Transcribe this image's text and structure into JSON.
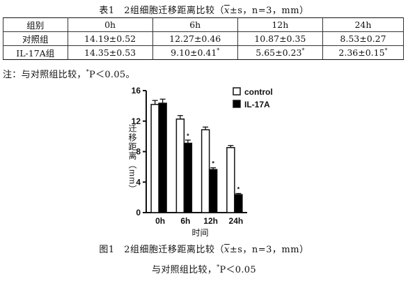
{
  "table": {
    "caption_prefix": "表1　2组细胞迁移距离比较（",
    "caption_xbar": "x",
    "caption_suffix": "±s，n=3，mm）",
    "headers": [
      "组别",
      "0h",
      "6h",
      "12h",
      "24h"
    ],
    "rows": [
      {
        "group": "对照组",
        "cells": [
          {
            "value": "14.19±0.52",
            "mark": ""
          },
          {
            "value": "12.27±0.46",
            "mark": ""
          },
          {
            "value": "10.87±0.35",
            "mark": ""
          },
          {
            "value": "8.53±0.27",
            "mark": ""
          }
        ]
      },
      {
        "group": "IL-17A组",
        "cells": [
          {
            "value": "14.35±0.53",
            "mark": ""
          },
          {
            "value": "9.10±0.41",
            "mark": "*"
          },
          {
            "value": "5.65±0.23",
            "mark": "*"
          },
          {
            "value": "2.36±0.15",
            "mark": "*"
          }
        ]
      }
    ],
    "note_prefix": "注：与对照组比较，",
    "note_mark": "*",
    "note_suffix": "P＜0.05。"
  },
  "chart_data": {
    "type": "bar",
    "categories": [
      "0h",
      "6h",
      "12h",
      "24h"
    ],
    "series": [
      {
        "name": "control",
        "values": [
          14.19,
          12.27,
          10.87,
          8.53
        ],
        "errors": [
          0.52,
          0.46,
          0.35,
          0.27
        ],
        "color": "#ffffff"
      },
      {
        "name": "IL-17A",
        "values": [
          14.35,
          9.1,
          5.65,
          2.36
        ],
        "errors": [
          0.53,
          0.41,
          0.23,
          0.15
        ],
        "color": "#000000"
      }
    ],
    "significance": [
      "",
      "*",
      "*",
      "*"
    ],
    "xlabel": "时间",
    "ylabel": "迁移距离（mm）",
    "yticks": [
      0,
      4,
      8,
      12,
      16
    ],
    "ylim": [
      0,
      16
    ],
    "legend_position": "top-right",
    "grid": false
  },
  "figure": {
    "caption_prefix": "图1　2组细胞迁移距离比较（",
    "caption_xbar": "x",
    "caption_suffix": "±s，n=3，mm）",
    "note_prefix": "与对照组比较，",
    "note_mark": "*",
    "note_suffix": "P＜0.05"
  }
}
